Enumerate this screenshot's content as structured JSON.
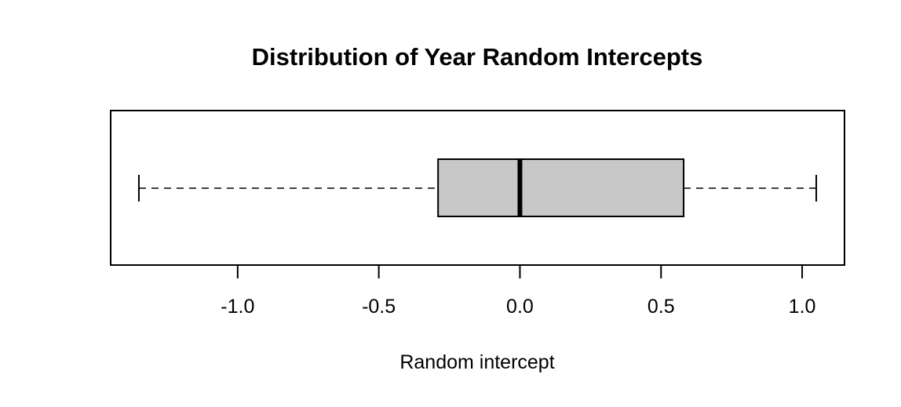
{
  "chart_data": {
    "type": "boxplot",
    "orientation": "horizontal",
    "title": "Distribution of Year Random Intercepts",
    "xlabel": "Random intercept",
    "ylabel": "",
    "xlim": [
      -1.45,
      1.15
    ],
    "ticks": [
      -1.0,
      -0.5,
      0.0,
      0.5,
      1.0
    ],
    "tick_labels": [
      "-1.0",
      "-0.5",
      "0.0",
      "0.5",
      "1.0"
    ],
    "box": {
      "min": -1.35,
      "q1": -0.29,
      "median": 0.0,
      "q3": 0.58,
      "max": 1.05
    },
    "box_fill": "#c8c8c8",
    "line_color": "#000000",
    "grid": false,
    "legend": "none"
  }
}
